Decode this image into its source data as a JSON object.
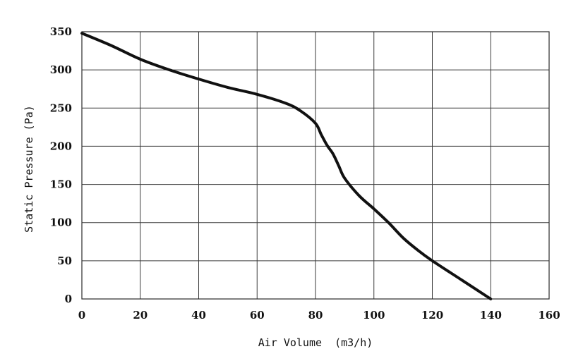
{
  "chart_data": {
    "type": "line",
    "title": "",
    "xlabel": "Air Volume  (m3/h)",
    "ylabel": "Static Pressure (Pa)",
    "xlim": [
      0,
      160
    ],
    "ylim": [
      0,
      350
    ],
    "xticks": [
      0,
      20,
      40,
      60,
      80,
      100,
      120,
      140,
      160
    ],
    "yticks": [
      0,
      50,
      100,
      150,
      200,
      250,
      300,
      350
    ],
    "grid": true,
    "series": [
      {
        "x": [
          0,
          10,
          20,
          30,
          40,
          50,
          60,
          70,
          75,
          80,
          82,
          84,
          86,
          88,
          90,
          95,
          100,
          105,
          110,
          115,
          120,
          130,
          140
        ],
        "y": [
          348,
          332,
          314,
          300,
          288,
          277,
          268,
          256,
          246,
          230,
          215,
          201,
          190,
          174,
          158,
          135,
          118,
          100,
          80,
          64,
          50,
          25,
          0
        ]
      }
    ],
    "color": "#111111"
  }
}
